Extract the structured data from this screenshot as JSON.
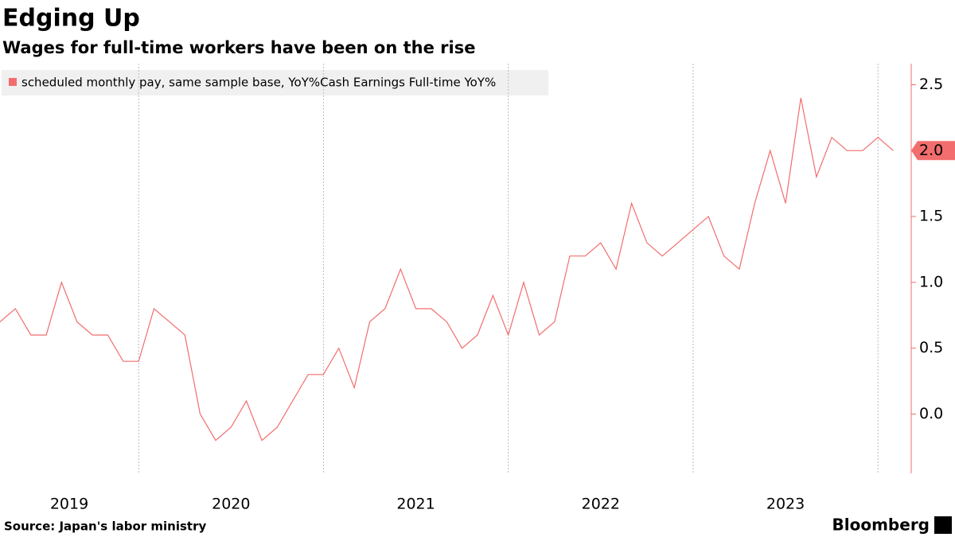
{
  "chart_data": {
    "type": "line",
    "title": "Edging Up",
    "subtitle": "Wages for full-time workers have been on the rise",
    "source": "Source: Japan's labor ministry",
    "brand": "Bloomberg",
    "x": [
      2019.25,
      2019.333,
      2019.417,
      2019.5,
      2019.583,
      2019.667,
      2019.75,
      2019.833,
      2019.917,
      2020,
      2020.083,
      2020.167,
      2020.25,
      2020.333,
      2020.417,
      2020.5,
      2020.583,
      2020.667,
      2020.75,
      2020.833,
      2020.917,
      2021,
      2021.083,
      2021.167,
      2021.25,
      2021.333,
      2021.417,
      2021.5,
      2021.583,
      2021.667,
      2021.75,
      2021.833,
      2021.917,
      2022,
      2022.083,
      2022.167,
      2022.25,
      2022.333,
      2022.417,
      2022.5,
      2022.583,
      2022.667,
      2022.75,
      2022.833,
      2022.917,
      2023,
      2023.083,
      2023.167,
      2023.25,
      2023.333,
      2023.417,
      2023.5,
      2023.583,
      2023.667,
      2023.75,
      2023.833,
      2023.917,
      2024,
      2024.083
    ],
    "series": [
      {
        "name": "scheduled monthly pay, same sample base, YoY%Cash Earnings Full-time YoY%",
        "color": "#f26d6d",
        "values": [
          0.7,
          0.8,
          0.6,
          0.6,
          1.0,
          0.7,
          0.6,
          0.6,
          0.4,
          0.4,
          0.8,
          0.7,
          0.6,
          0.0,
          -0.2,
          -0.1,
          0.1,
          -0.2,
          -0.1,
          0.1,
          0.3,
          0.3,
          0.5,
          0.2,
          0.7,
          0.8,
          1.1,
          0.8,
          0.8,
          0.7,
          0.5,
          0.6,
          0.9,
          0.6,
          1.0,
          0.6,
          0.7,
          1.2,
          1.2,
          1.3,
          1.1,
          1.6,
          1.3,
          1.2,
          1.3,
          1.4,
          1.5,
          1.2,
          1.1,
          1.6,
          2.0,
          1.6,
          2.4,
          1.8,
          2.1,
          2.0,
          2.0,
          2.1,
          2.0
        ],
        "last_label": "2.0"
      }
    ],
    "xlim": [
      2019.25,
      2024.18
    ],
    "xticks": [
      {
        "value": 2019.5,
        "label": "2019"
      },
      {
        "value": 2020.5,
        "label": "2020"
      },
      {
        "value": 2021.5,
        "label": "2021"
      },
      {
        "value": 2022.5,
        "label": "2022"
      },
      {
        "value": 2023.5,
        "label": "2023"
      }
    ],
    "xgrid": [
      2020,
      2021,
      2022,
      2023,
      2024
    ],
    "ylim": [
      -0.45,
      2.66
    ],
    "yticks": [
      {
        "value": 0,
        "label": "0.0"
      },
      0.5,
      {
        "value": 1,
        "label": "1.0"
      },
      1.5,
      {
        "value": 2,
        "label": "2.0"
      },
      2.5
    ],
    "axis_color": "#f26d6d",
    "grid_color": "#bbbbbb"
  }
}
